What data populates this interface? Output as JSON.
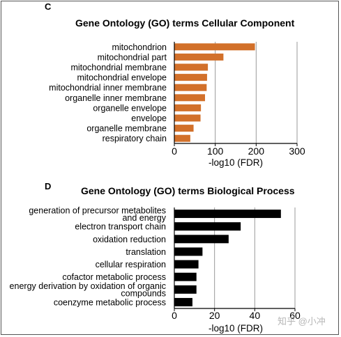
{
  "watermark": "知乎 @小冲",
  "chart_data": [
    {
      "panel": "C",
      "type": "bar",
      "orientation": "horizontal",
      "title": "Gene Ontology (GO) terms Cellular Component",
      "xlabel": "-log10 (FDR)",
      "ylabel": "",
      "xlim": [
        0,
        300
      ],
      "xticks": [
        0,
        100,
        200,
        300
      ],
      "grid": "vertical",
      "color": "#d2702a",
      "categories": [
        [
          "mitochondrion"
        ],
        [
          "mitochondrial part"
        ],
        [
          "mitochondrial membrane"
        ],
        [
          "mitochondrial envelope"
        ],
        [
          "mitochondrial inner membrane"
        ],
        [
          "organelle inner membrane"
        ],
        [
          "organelle envelope"
        ],
        [
          "envelope"
        ],
        [
          "organelle membrane"
        ],
        [
          "respiratory chain"
        ]
      ],
      "values": [
        197,
        120,
        82,
        80,
        79,
        75,
        65,
        64,
        47,
        39
      ]
    },
    {
      "panel": "D",
      "type": "bar",
      "orientation": "horizontal",
      "title": "Gene Ontology (GO) terms Biological Process",
      "xlabel": "-log10 (FDR)",
      "ylabel": "",
      "xlim": [
        0,
        60
      ],
      "xticks": [
        0,
        20,
        40,
        60
      ],
      "grid": "vertical",
      "color": "#000000",
      "categories": [
        [
          "generation of precursor metabolites",
          "and energy"
        ],
        [
          "electron transport chain"
        ],
        [
          "oxidation reduction"
        ],
        [
          "translation"
        ],
        [
          "cellular respiration"
        ],
        [
          "cofactor metabolic process"
        ],
        [
          "energy derivation by oxidation of organic",
          "compounds"
        ],
        [
          "coenzyme metabolic process"
        ]
      ],
      "values": [
        53,
        33,
        27,
        14,
        12,
        11,
        11,
        9
      ]
    }
  ]
}
